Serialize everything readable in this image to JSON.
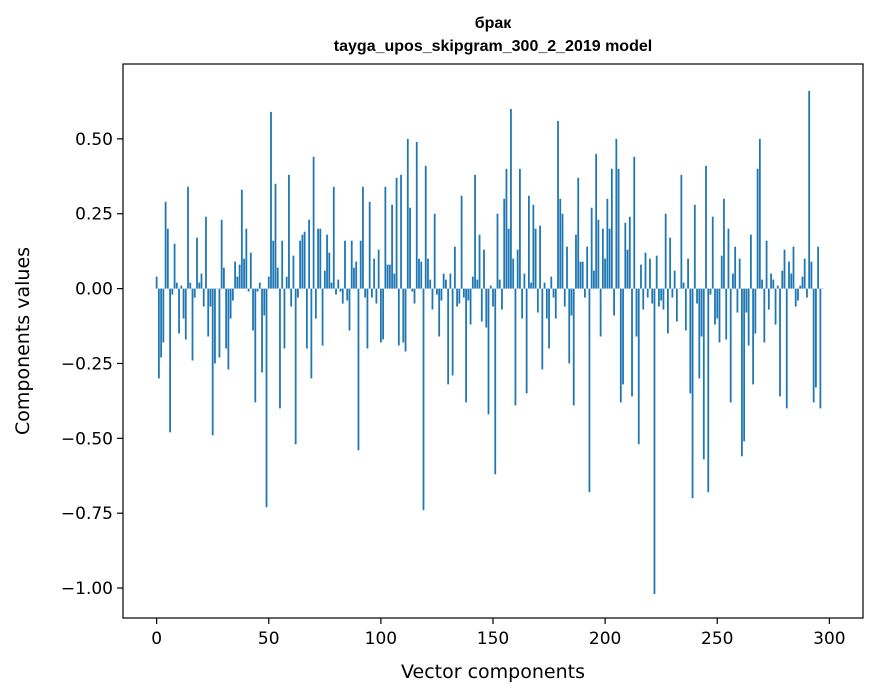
{
  "chart_data": {
    "type": "bar",
    "title": "брак",
    "subtitle": "tayga_upos_skipgram_300_2_2019 model",
    "xlabel": "Vector components",
    "ylabel": "Components values",
    "xlim": [
      -15,
      315
    ],
    "ylim": [
      -1.1,
      0.75
    ],
    "xticks": [
      0,
      50,
      100,
      150,
      200,
      250,
      300
    ],
    "xtick_labels": [
      "0",
      "50",
      "100",
      "150",
      "200",
      "250",
      "300"
    ],
    "yticks": [
      0.5,
      0.25,
      0.0,
      -0.25,
      -0.5,
      -0.75,
      -1.0
    ],
    "ytick_labels": [
      "0.50",
      "0.25",
      "0.00",
      "−0.25",
      "−0.50",
      "−0.75",
      "−1.00"
    ],
    "grid": false,
    "color": "#1f77b4",
    "values": [
      0.04,
      -0.3,
      -0.23,
      -0.18,
      0.29,
      0.2,
      -0.48,
      -0.02,
      0.15,
      0.02,
      -0.15,
      0.01,
      -0.1,
      -0.17,
      0.34,
      0.02,
      -0.24,
      -0.03,
      0.17,
      0.02,
      0.05,
      -0.06,
      0.24,
      -0.16,
      -0.06,
      -0.49,
      -0.25,
      0.0,
      -0.23,
      0.23,
      0.07,
      -0.2,
      -0.27,
      -0.1,
      -0.04,
      0.09,
      0.04,
      0.08,
      0.33,
      0.1,
      0.2,
      -0.01,
      0.12,
      -0.14,
      -0.38,
      -0.01,
      0.02,
      -0.28,
      -0.09,
      -0.73,
      0.04,
      0.59,
      0.16,
      0.35,
      0.07,
      -0.4,
      0.16,
      -0.2,
      0.04,
      0.38,
      -0.06,
      0.11,
      -0.52,
      -0.03,
      0.16,
      0.18,
      0.19,
      -0.2,
      0.23,
      -0.3,
      0.44,
      -0.1,
      0.2,
      0.2,
      -0.19,
      0.06,
      0.18,
      0.12,
      0.02,
      0.34,
      -0.02,
      0.03,
      -0.01,
      -0.05,
      0.16,
      -0.04,
      -0.14,
      0.16,
      0.07,
      0.09,
      -0.54,
      0.16,
      0.34,
      -0.03,
      -0.2,
      0.29,
      -0.03,
      0.1,
      -0.05,
      0.13,
      -0.18,
      -0.17,
      0.34,
      0.08,
      0.08,
      0.28,
      0.05,
      0.37,
      -0.19,
      0.38,
      -0.18,
      -0.21,
      0.5,
      0.27,
      -0.01,
      -0.05,
      0.49,
      0.1,
      0.09,
      -0.74,
      0.41,
      0.1,
      0.03,
      -0.07,
      0.25,
      -0.02,
      -0.16,
      -0.04,
      0.05,
      0.03,
      -0.32,
      0.05,
      -0.29,
      0.14,
      -0.06,
      -0.05,
      0.31,
      -0.03,
      -0.38,
      -0.04,
      -0.12,
      0.04,
      0.38,
      0.03,
      0.18,
      -0.11,
      0.13,
      -0.13,
      -0.42,
      0.01,
      -0.06,
      -0.62,
      0.25,
      0.03,
      -0.07,
      0.3,
      0.4,
      0.2,
      0.6,
      0.1,
      -0.39,
      0.13,
      0.4,
      -0.1,
      0.05,
      -0.35,
      0.31,
      0.02,
      0.28,
      0.2,
      -0.08,
      0.21,
      -0.27,
      0.02,
      -0.1,
      -0.2,
      0.04,
      -0.03,
      -0.1,
      0.56,
      0.3,
      0.25,
      -0.06,
      0.14,
      -0.25,
      -0.09,
      -0.39,
      0.18,
      0.37,
      0.09,
      0.09,
      -0.03,
      0.14,
      -0.68,
      0.27,
      0.06,
      0.45,
      0.23,
      -0.16,
      0.2,
      0.1,
      0.3,
      0.2,
      0.4,
      -0.09,
      0.5,
      0.4,
      -0.38,
      -0.32,
      0.22,
      0.13,
      0.24,
      -0.36,
      0.44,
      -0.16,
      -0.52,
      0.08,
      -0.07,
      0.12,
      -0.03,
      0.1,
      -0.05,
      -1.02,
      0.11,
      -0.06,
      -0.04,
      -0.07,
      0.25,
      -0.15,
      0.17,
      -0.03,
      0.06,
      -0.11,
      0.0,
      0.38,
      0.02,
      -0.14,
      0.1,
      -0.35,
      -0.7,
      0.28,
      -0.05,
      -0.3,
      -0.16,
      -0.57,
      0.41,
      -0.68,
      -0.02,
      0.24,
      -0.12,
      -0.1,
      -0.18,
      0.11,
      0.3,
      -0.17,
      0.2,
      -0.38,
      0.05,
      0.14,
      -0.08,
      0.1,
      -0.56,
      -0.51,
      -0.08,
      -0.19,
      0.18,
      -0.32,
      -0.15,
      0.4,
      0.5,
      0.03,
      -0.18,
      0.16,
      -0.07,
      0.05,
      0.03,
      -0.12,
      0.01,
      -0.36,
      0.06,
      0.13,
      -0.4,
      0.09,
      0.05,
      0.14,
      -0.06,
      -0.04,
      0.01,
      0.04,
      0.1,
      -0.03,
      0.66,
      0.09,
      -0.38,
      -0.33,
      0.14,
      -0.4,
      0.0
    ]
  }
}
